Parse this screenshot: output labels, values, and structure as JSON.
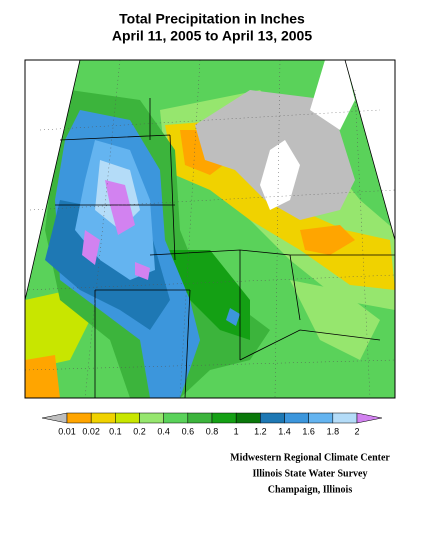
{
  "title": {
    "line1": "Total Precipitation in Inches",
    "line2": "April 11, 2005 to April 13, 2005"
  },
  "legend": {
    "labels": [
      "0.01",
      "0.02",
      "0.1",
      "0.2",
      "0.4",
      "0.6",
      "0.8",
      "1",
      "1.2",
      "1.4",
      "1.6",
      "1.8",
      "2"
    ],
    "colors": [
      "#bebebe",
      "#ffa500",
      "#f0d200",
      "#c8e600",
      "#96e66e",
      "#5ad25a",
      "#3cb43c",
      "#14a014",
      "#0a780a",
      "#1e78b4",
      "#3c96dc",
      "#64b4f0",
      "#b4dcf8",
      "#d282f0"
    ]
  },
  "credits": [
    "Midwestern Regional Climate Center",
    "Illinois State Water Survey",
    "Champaign, Illinois"
  ]
}
